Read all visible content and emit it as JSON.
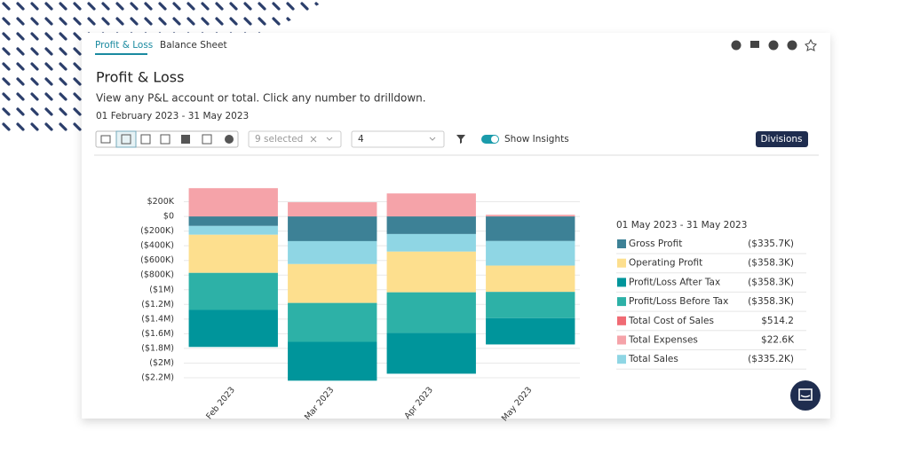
{
  "tabs": [
    "Profit & Loss",
    "Balance Sheet"
  ],
  "header": {
    "title": "Profit & Loss",
    "description": "View any P&L account or total. Click any number to drilldown.",
    "date_range": "01 February 2023 - 31 May 2023"
  },
  "toolbar": {
    "account_select": "9 selected",
    "level_select": "4",
    "toggle_label": "Show Insights",
    "button": "Divisions"
  },
  "chart_data": {
    "type": "stacked_bar",
    "categories": [
      "Feb 2023",
      "Mar 2023",
      "Apr 2023",
      "May 2023"
    ],
    "insights_title": "01 May 2023 - 31 May 2023",
    "series": [
      {
        "name": "Gross Profit",
        "color": "#3d8196",
        "values": [
          -130000,
          -337000,
          -240000,
          -335700
        ],
        "value_labels": [
          null,
          null,
          null,
          "($335.7K)"
        ]
      },
      {
        "name": "Operating Profit",
        "color": "#fddf8e",
        "values": [
          -520000,
          -530000,
          -555000,
          -358300
        ],
        "value_labels": [
          null,
          null,
          null,
          "($358.3K)"
        ]
      },
      {
        "name": "Profit/Loss After Tax",
        "color": "#00959b",
        "values": [
          -505000,
          -530000,
          -555000,
          -358300
        ],
        "value_labels": [
          null,
          null,
          null,
          "($358.3K)"
        ]
      },
      {
        "name": "Profit/Loss Before Tax",
        "color": "#2db1a7",
        "values": [
          -505000,
          -530000,
          -555000,
          -358300
        ],
        "value_labels": [
          null,
          null,
          null,
          "($358.3K)"
        ]
      },
      {
        "name": "Total Cost of Sales",
        "color": "#f06b74",
        "values": [
          500,
          500,
          500,
          514.2
        ],
        "value_labels": [
          null,
          null,
          null,
          "$514.2"
        ]
      },
      {
        "name": "Total Expenses",
        "color": "#f5a3a9",
        "values": [
          385000,
          193000,
          313000,
          22600
        ],
        "value_labels": [
          null,
          null,
          null,
          "$22.6K"
        ]
      },
      {
        "name": "Total Sales",
        "color": "#8fd6e4",
        "values": [
          -120000,
          -313000,
          -240000,
          -335200
        ],
        "value_labels": [
          null,
          null,
          null,
          "($335.2K)"
        ]
      }
    ],
    "ylim": [
      -2200000,
      400000
    ],
    "yticks": [
      {
        "value": 200000,
        "label": "$200K"
      },
      {
        "value": 0,
        "label": "$0"
      },
      {
        "value": -200000,
        "label": "($200K)"
      },
      {
        "value": -400000,
        "label": "($400K)"
      },
      {
        "value": -600000,
        "label": "($600K)"
      },
      {
        "value": -800000,
        "label": "($800K)"
      },
      {
        "value": -1000000,
        "label": "($1M)"
      },
      {
        "value": -1200000,
        "label": "($1.2M)"
      },
      {
        "value": -1400000,
        "label": "($1.4M)"
      },
      {
        "value": -1600000,
        "label": "($1.6M)"
      },
      {
        "value": -1800000,
        "label": "($1.8M)"
      },
      {
        "value": -2000000,
        "label": "($2M)"
      },
      {
        "value": -2200000,
        "label": "($2.2M)"
      }
    ],
    "grid": true
  }
}
